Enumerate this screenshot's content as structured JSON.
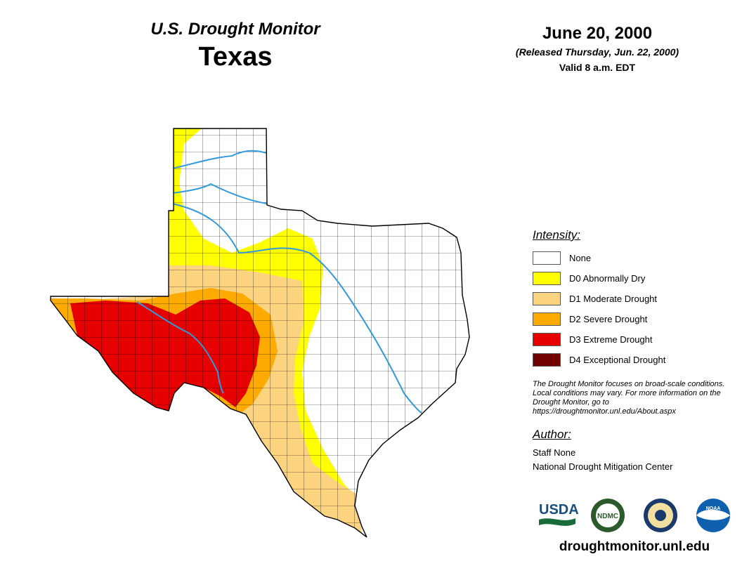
{
  "header": {
    "monitor_title": "U.S. Drought Monitor",
    "state": "Texas",
    "date": "June 20, 2000",
    "released": "(Released Thursday, Jun. 22, 2000)",
    "valid": "Valid 8 a.m. EDT"
  },
  "legend": {
    "title": "Intensity:",
    "items": [
      {
        "label": "None",
        "color": "#ffffff"
      },
      {
        "label": "D0 Abnormally Dry",
        "color": "#ffff00"
      },
      {
        "label": "D1 Moderate Drought",
        "color": "#fcd37f"
      },
      {
        "label": "D2 Severe Drought",
        "color": "#ffaa00"
      },
      {
        "label": "D3 Extreme Drought",
        "color": "#e60000"
      },
      {
        "label": "D4 Exceptional Drought",
        "color": "#730000"
      }
    ]
  },
  "note": "The Drought Monitor focuses on broad-scale conditions. Local conditions may vary. For more information on the Drought Monitor, go to https://droughtmonitor.unl.edu/About.aspx",
  "author": {
    "title": "Author:",
    "name": "Staff None",
    "org": "National Drought Mitigation Center"
  },
  "logos": {
    "usda": "USDA",
    "ndmc": "NDMC",
    "noaa": "NOAA"
  },
  "site_url": "droughtmonitor.unl.edu",
  "colors": {
    "river": "#3399dd",
    "county_line": "#000000"
  }
}
